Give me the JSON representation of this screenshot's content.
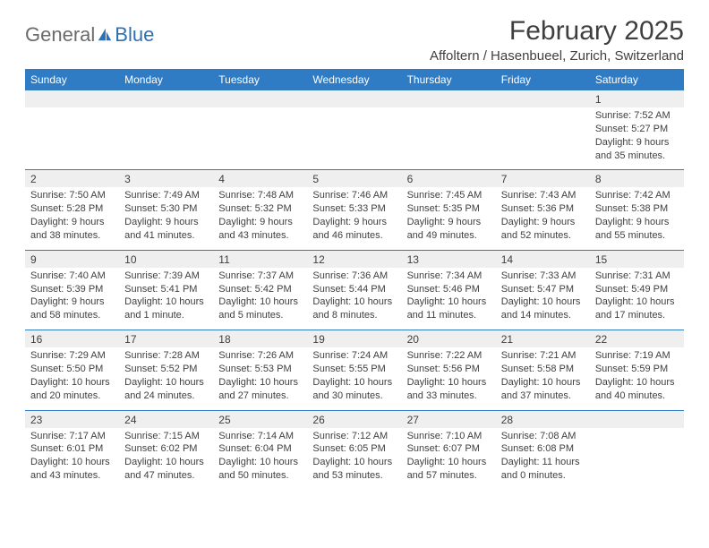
{
  "brand": {
    "word1": "General",
    "word2": "Blue"
  },
  "title": "February 2025",
  "location": "Affoltern / Hasenbueel, Zurich, Switzerland",
  "colors": {
    "header_bg": "#2f7bc4",
    "header_text": "#ffffff",
    "daynum_bg": "#efefef",
    "text": "#3f3f3f",
    "brand_gray": "#6b6b6b",
    "brand_blue": "#2f6fb4",
    "page_bg": "#ffffff",
    "rule": "#2f7bc4"
  },
  "typography": {
    "title_fontsize": 30,
    "location_fontsize": 15,
    "dayhead_fontsize": 12,
    "daynum_fontsize": 12,
    "body_fontsize": 11
  },
  "day_headers": [
    "Sunday",
    "Monday",
    "Tuesday",
    "Wednesday",
    "Thursday",
    "Friday",
    "Saturday"
  ],
  "weeks": [
    [
      null,
      null,
      null,
      null,
      null,
      null,
      {
        "n": "1",
        "sunrise": "Sunrise: 7:52 AM",
        "sunset": "Sunset: 5:27 PM",
        "daylight": "Daylight: 9 hours and 35 minutes."
      }
    ],
    [
      {
        "n": "2",
        "sunrise": "Sunrise: 7:50 AM",
        "sunset": "Sunset: 5:28 PM",
        "daylight": "Daylight: 9 hours and 38 minutes."
      },
      {
        "n": "3",
        "sunrise": "Sunrise: 7:49 AM",
        "sunset": "Sunset: 5:30 PM",
        "daylight": "Daylight: 9 hours and 41 minutes."
      },
      {
        "n": "4",
        "sunrise": "Sunrise: 7:48 AM",
        "sunset": "Sunset: 5:32 PM",
        "daylight": "Daylight: 9 hours and 43 minutes."
      },
      {
        "n": "5",
        "sunrise": "Sunrise: 7:46 AM",
        "sunset": "Sunset: 5:33 PM",
        "daylight": "Daylight: 9 hours and 46 minutes."
      },
      {
        "n": "6",
        "sunrise": "Sunrise: 7:45 AM",
        "sunset": "Sunset: 5:35 PM",
        "daylight": "Daylight: 9 hours and 49 minutes."
      },
      {
        "n": "7",
        "sunrise": "Sunrise: 7:43 AM",
        "sunset": "Sunset: 5:36 PM",
        "daylight": "Daylight: 9 hours and 52 minutes."
      },
      {
        "n": "8",
        "sunrise": "Sunrise: 7:42 AM",
        "sunset": "Sunset: 5:38 PM",
        "daylight": "Daylight: 9 hours and 55 minutes."
      }
    ],
    [
      {
        "n": "9",
        "sunrise": "Sunrise: 7:40 AM",
        "sunset": "Sunset: 5:39 PM",
        "daylight": "Daylight: 9 hours and 58 minutes."
      },
      {
        "n": "10",
        "sunrise": "Sunrise: 7:39 AM",
        "sunset": "Sunset: 5:41 PM",
        "daylight": "Daylight: 10 hours and 1 minute."
      },
      {
        "n": "11",
        "sunrise": "Sunrise: 7:37 AM",
        "sunset": "Sunset: 5:42 PM",
        "daylight": "Daylight: 10 hours and 5 minutes."
      },
      {
        "n": "12",
        "sunrise": "Sunrise: 7:36 AM",
        "sunset": "Sunset: 5:44 PM",
        "daylight": "Daylight: 10 hours and 8 minutes."
      },
      {
        "n": "13",
        "sunrise": "Sunrise: 7:34 AM",
        "sunset": "Sunset: 5:46 PM",
        "daylight": "Daylight: 10 hours and 11 minutes."
      },
      {
        "n": "14",
        "sunrise": "Sunrise: 7:33 AM",
        "sunset": "Sunset: 5:47 PM",
        "daylight": "Daylight: 10 hours and 14 minutes."
      },
      {
        "n": "15",
        "sunrise": "Sunrise: 7:31 AM",
        "sunset": "Sunset: 5:49 PM",
        "daylight": "Daylight: 10 hours and 17 minutes."
      }
    ],
    [
      {
        "n": "16",
        "sunrise": "Sunrise: 7:29 AM",
        "sunset": "Sunset: 5:50 PM",
        "daylight": "Daylight: 10 hours and 20 minutes."
      },
      {
        "n": "17",
        "sunrise": "Sunrise: 7:28 AM",
        "sunset": "Sunset: 5:52 PM",
        "daylight": "Daylight: 10 hours and 24 minutes."
      },
      {
        "n": "18",
        "sunrise": "Sunrise: 7:26 AM",
        "sunset": "Sunset: 5:53 PM",
        "daylight": "Daylight: 10 hours and 27 minutes."
      },
      {
        "n": "19",
        "sunrise": "Sunrise: 7:24 AM",
        "sunset": "Sunset: 5:55 PM",
        "daylight": "Daylight: 10 hours and 30 minutes."
      },
      {
        "n": "20",
        "sunrise": "Sunrise: 7:22 AM",
        "sunset": "Sunset: 5:56 PM",
        "daylight": "Daylight: 10 hours and 33 minutes."
      },
      {
        "n": "21",
        "sunrise": "Sunrise: 7:21 AM",
        "sunset": "Sunset: 5:58 PM",
        "daylight": "Daylight: 10 hours and 37 minutes."
      },
      {
        "n": "22",
        "sunrise": "Sunrise: 7:19 AM",
        "sunset": "Sunset: 5:59 PM",
        "daylight": "Daylight: 10 hours and 40 minutes."
      }
    ],
    [
      {
        "n": "23",
        "sunrise": "Sunrise: 7:17 AM",
        "sunset": "Sunset: 6:01 PM",
        "daylight": "Daylight: 10 hours and 43 minutes."
      },
      {
        "n": "24",
        "sunrise": "Sunrise: 7:15 AM",
        "sunset": "Sunset: 6:02 PM",
        "daylight": "Daylight: 10 hours and 47 minutes."
      },
      {
        "n": "25",
        "sunrise": "Sunrise: 7:14 AM",
        "sunset": "Sunset: 6:04 PM",
        "daylight": "Daylight: 10 hours and 50 minutes."
      },
      {
        "n": "26",
        "sunrise": "Sunrise: 7:12 AM",
        "sunset": "Sunset: 6:05 PM",
        "daylight": "Daylight: 10 hours and 53 minutes."
      },
      {
        "n": "27",
        "sunrise": "Sunrise: 7:10 AM",
        "sunset": "Sunset: 6:07 PM",
        "daylight": "Daylight: 10 hours and 57 minutes."
      },
      {
        "n": "28",
        "sunrise": "Sunrise: 7:08 AM",
        "sunset": "Sunset: 6:08 PM",
        "daylight": "Daylight: 11 hours and 0 minutes."
      },
      null
    ]
  ]
}
